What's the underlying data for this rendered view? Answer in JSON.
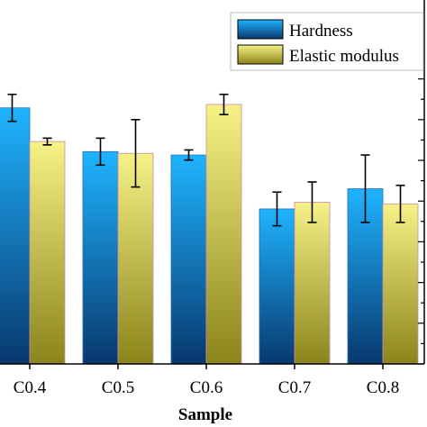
{
  "chart_data": {
    "type": "bar",
    "title": "",
    "xlabel": "Sample",
    "ylabel": "",
    "categories": [
      "C0.4",
      "C0.5",
      "C0.6",
      "C0.7",
      "C0.8"
    ],
    "series": [
      {
        "name": "Hardness",
        "color": "#1aa3f0",
        "values": [
          7.6,
          6.3,
          6.2,
          4.6,
          5.2
        ],
        "errors": [
          0.4,
          0.4,
          0.15,
          0.5,
          1.0
        ]
      },
      {
        "name": "Elastic modulus",
        "color": "#e6df72",
        "values": [
          6.6,
          6.25,
          7.7,
          4.8,
          4.75
        ],
        "errors": [
          0.1,
          1.0,
          0.3,
          0.6,
          0.55
        ]
      }
    ],
    "ylim": [
      0,
      10.8
    ],
    "grid": false,
    "legend_position": "top-right"
  }
}
